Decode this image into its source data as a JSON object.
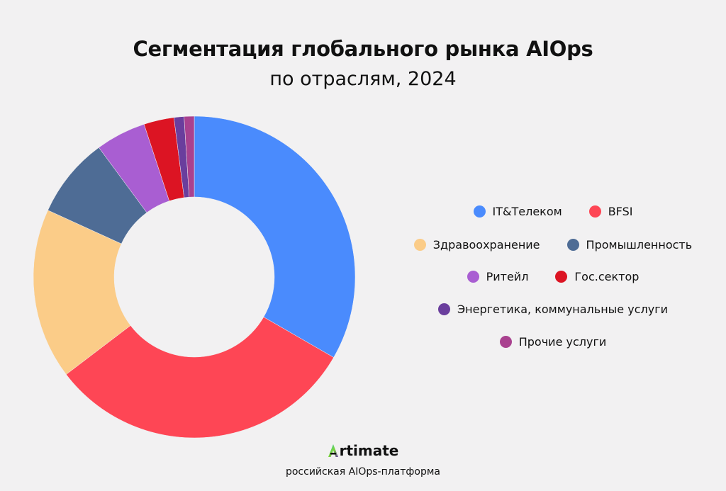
{
  "chart_data": {
    "type": "pie",
    "title": "Сегментация глобального рынка AIOps",
    "subtitle": "по отраслям, 2024",
    "donut": true,
    "categories": [
      "IT&Телеком",
      "BFSI",
      "Здравоохранение",
      "Промышленность",
      "Ритейл",
      "Гос.сектор",
      "Энергетика, коммунальные услуги",
      "Прочие услуги"
    ],
    "values": [
      33,
      31,
      17,
      8,
      5,
      3,
      1,
      1
    ],
    "colors": [
      "#4a8bfd",
      "#fe4655",
      "#fbcc88",
      "#4e6c95",
      "#a95ed2",
      "#dc1423",
      "#6a3e9d",
      "#a9418f"
    ],
    "legend_position": "right"
  },
  "footer": {
    "brand_initial": "A",
    "brand_rest": "rtimate",
    "tagline": "российская AIOps-платформа"
  }
}
